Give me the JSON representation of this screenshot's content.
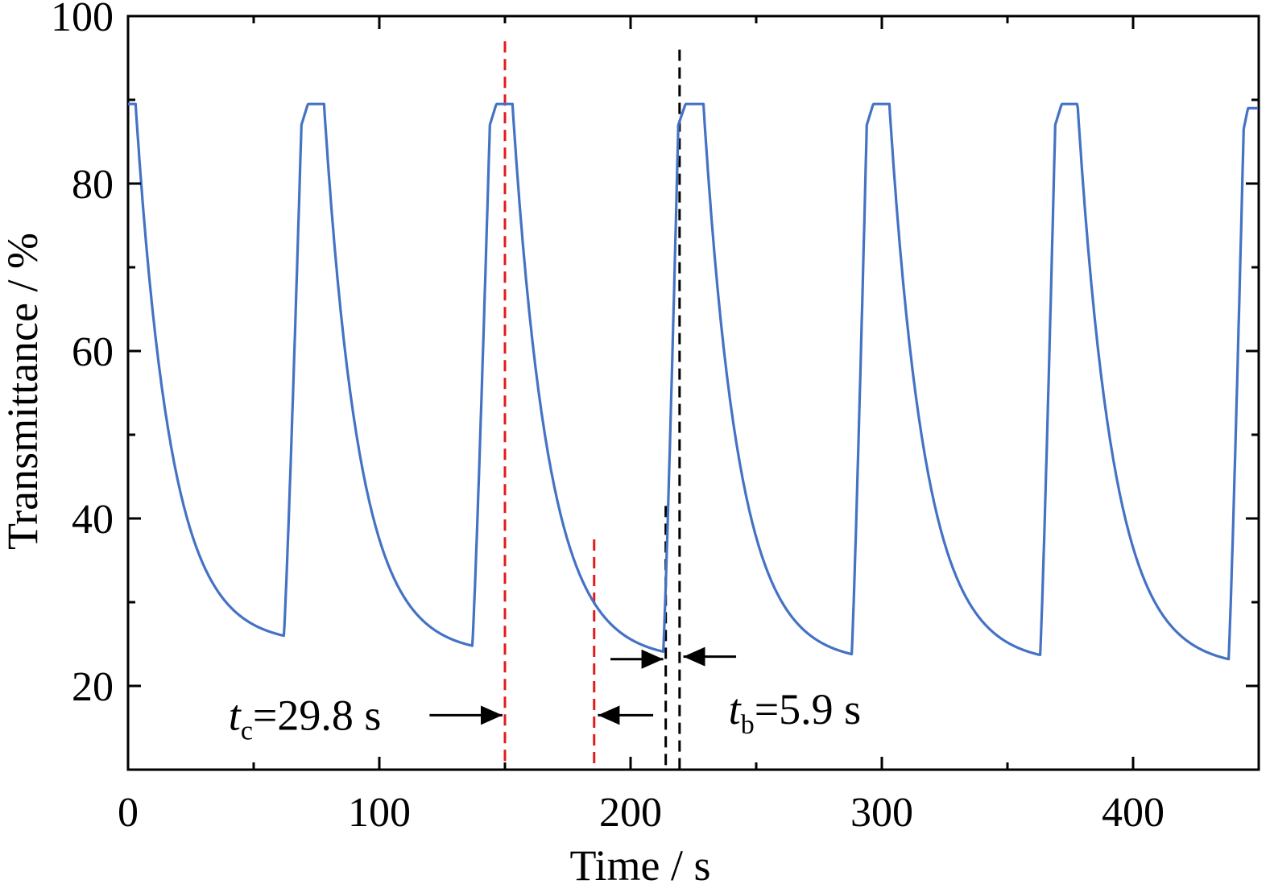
{
  "chart_data": {
    "type": "line",
    "title": "",
    "xlabel": "Time / s",
    "ylabel": "Transmittance / %",
    "xlim": [
      0,
      450
    ],
    "ylim": [
      10,
      100
    ],
    "x_major_ticks": [
      0,
      100,
      200,
      300,
      400
    ],
    "x_tick_labels": [
      "0",
      "100",
      "200",
      "300",
      "400"
    ],
    "y_major_ticks": [
      20,
      40,
      60,
      80,
      100
    ],
    "y_tick_labels": [
      "20",
      "40",
      "60",
      "80",
      "100"
    ],
    "grid": false,
    "legend": "none",
    "series": [
      {
        "color": "#4472c4",
        "cycles": [
          {
            "t_start": 0,
            "t_decay_start": 3,
            "t_min": 62,
            "t_rise_end": 69,
            "t_plateau_end": 78,
            "top": 89.5,
            "min": 26.0
          },
          {
            "t_start": 78,
            "t_decay_start": 78,
            "t_min": 137,
            "t_rise_end": 144,
            "t_plateau_end": 153,
            "top": 89.5,
            "min": 24.8
          },
          {
            "t_start": 153,
            "t_decay_start": 153,
            "t_min": 213,
            "t_rise_end": 219,
            "t_plateau_end": 229,
            "top": 89.5,
            "min": 24.1
          },
          {
            "t_start": 229,
            "t_decay_start": 229,
            "t_min": 288,
            "t_rise_end": 294,
            "t_plateau_end": 303,
            "top": 89.5,
            "min": 23.8
          },
          {
            "t_start": 303,
            "t_decay_start": 303,
            "t_min": 363,
            "t_rise_end": 369,
            "t_plateau_end": 378,
            "top": 89.5,
            "min": 23.7
          },
          {
            "t_start": 378,
            "t_decay_start": 378,
            "t_min": 438,
            "t_rise_end": 444,
            "t_plateau_end": 450,
            "top": 89.0,
            "min": 23.2
          }
        ]
      }
    ],
    "reference_lines": [
      {
        "x": 150,
        "y_from": 10,
        "y_to": 97,
        "color": "#e31a1c"
      },
      {
        "x": 185.5,
        "y_from": 10,
        "y_to": 37.5,
        "color": "#e31a1c"
      },
      {
        "x": 214,
        "y_from": 10,
        "y_to": 41.5,
        "color": "#000000"
      },
      {
        "x": 219.5,
        "y_from": 10,
        "y_to": 96,
        "color": "#000000"
      }
    ],
    "arrows": [
      {
        "from": [
          120,
          16.5
        ],
        "to": [
          149,
          16.5
        ]
      },
      {
        "from": [
          209,
          16.5
        ],
        "to": [
          187,
          16.5
        ]
      },
      {
        "from": [
          192,
          23.2
        ],
        "to": [
          213,
          23.2
        ]
      },
      {
        "from": [
          242,
          23.5
        ],
        "to": [
          221,
          23.5
        ]
      }
    ],
    "annotations": [
      {
        "symbol": "t",
        "subscript": "c",
        "text": "=29.8 s",
        "x": 40,
        "y": 16.5
      },
      {
        "symbol": "t",
        "subscript": "b",
        "text": "=5.9 s",
        "x": 239,
        "y": 17.2
      }
    ]
  }
}
